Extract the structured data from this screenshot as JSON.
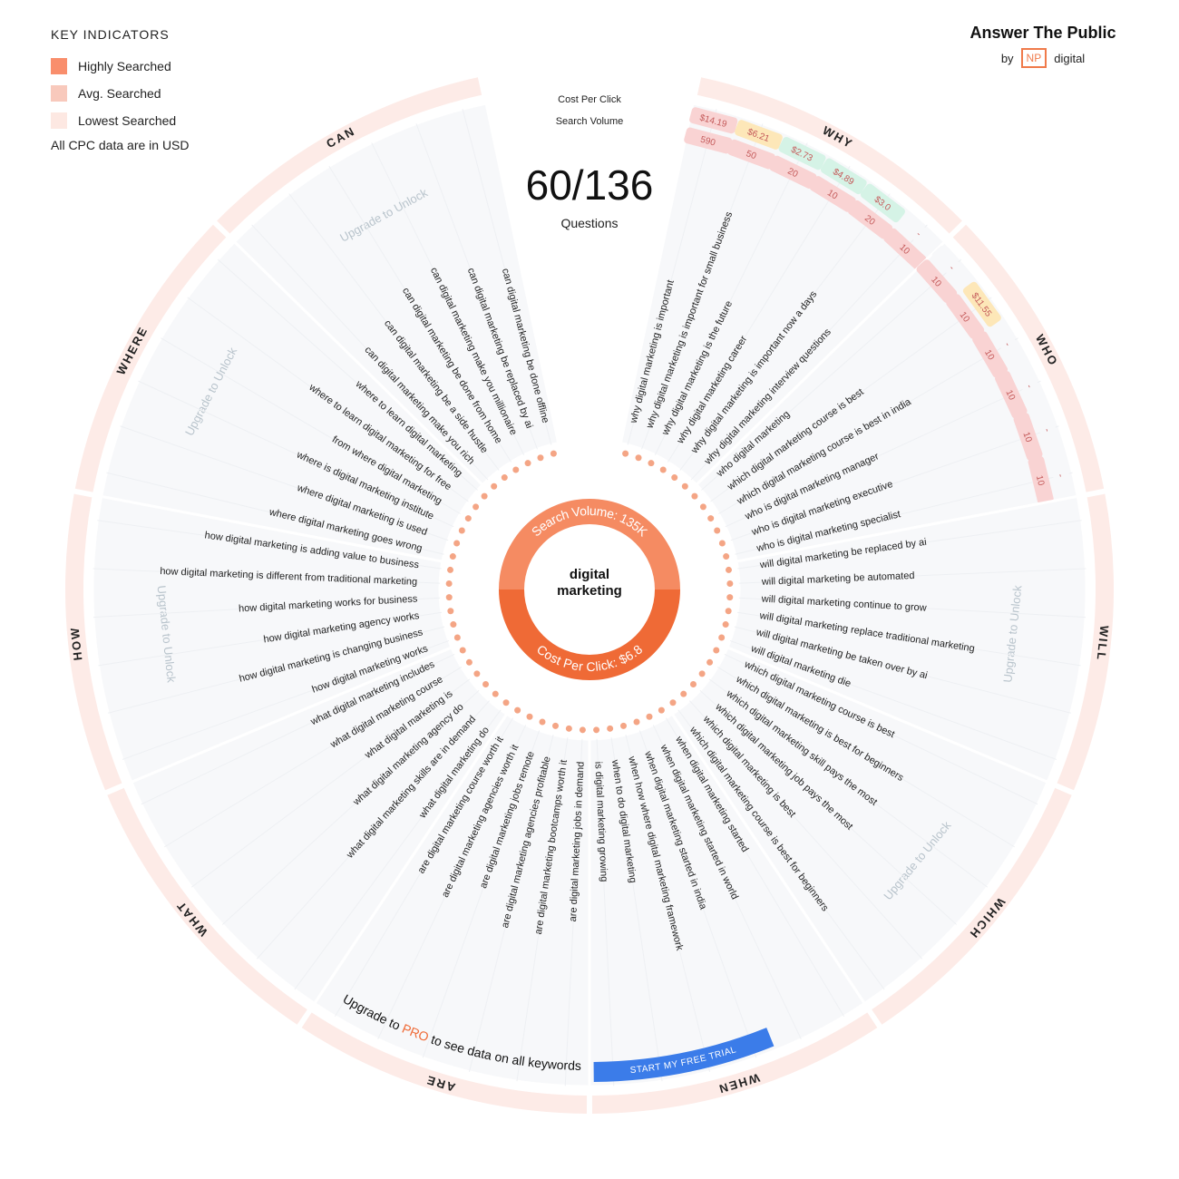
{
  "legend": {
    "title": "KEY INDICATORS",
    "items": [
      {
        "label": "Highly Searched",
        "color": "#f98e6c"
      },
      {
        "label": "Avg. Searched",
        "color": "#f8c9bc"
      },
      {
        "label": "Lowest Searched",
        "color": "#fde8e2"
      }
    ],
    "note": "All CPC data are in USD"
  },
  "brand": {
    "name": "Answer The Public",
    "by": "by",
    "badge": "NP",
    "suffix": "digital"
  },
  "header": {
    "cpc_label": "Cost Per Click",
    "volume_label": "Search Volume",
    "count": "60/136",
    "count_label": "Questions"
  },
  "center": {
    "keyword": "digital marketing",
    "volume": "Search Volume: 135K",
    "cpc": "Cost Per Click: $6.8"
  },
  "sections": [
    {
      "label": "WHY",
      "questions": [
        "why digital marketing is important",
        "why digital marketing is important for small business",
        "why digital marketing is the future",
        "why digital marketing career",
        "why digital marketing is important now a days",
        "why digital marketing interview questions"
      ],
      "cpc": [
        {
          "text": "$14.19",
          "color": "#f9d3d3"
        },
        {
          "text": "$6.21",
          "color": "#fde7b8"
        },
        {
          "text": "$2.73",
          "color": "#d5f3e6"
        },
        {
          "text": "$4.89",
          "color": "#d5f3e6"
        },
        {
          "text": "$3.0",
          "color": "#d5f3e6"
        },
        {
          "text": "-",
          "color": "#f7f8fa"
        }
      ],
      "volume": [
        590,
        50,
        20,
        10,
        20,
        10
      ]
    },
    {
      "label": "WHO",
      "questions": [
        "who digital marketing",
        "which digital marketing course is best",
        "which digital marketing course is best in india",
        "who is digital marketing manager",
        "who is digital marketing executive",
        "who is digital marketing specialist"
      ],
      "cpc": [
        {
          "text": "-",
          "color": "#f7f8fa"
        },
        {
          "text": "$11.55",
          "color": "#fde7b8"
        },
        {
          "text": "-",
          "color": "#f7f8fa"
        },
        {
          "text": "-",
          "color": "#f7f8fa"
        },
        {
          "text": "-",
          "color": "#f7f8fa"
        },
        {
          "text": "-",
          "color": "#f7f8fa"
        }
      ],
      "volume": [
        10,
        10,
        10,
        10,
        10,
        10
      ]
    },
    {
      "label": "WILL",
      "locked": "Upgrade to Unlock",
      "questions": [
        "will digital marketing be replaced by ai",
        "will digital marketing be automated",
        "will digital marketing continue to grow",
        "will digital marketing replace traditional marketing",
        "will digital marketing be taken over by ai",
        "will digital marketing die"
      ]
    },
    {
      "label": "WHICH",
      "locked": "Upgrade to Unlock",
      "questions": [
        "which digital marketing course is best",
        "which digital marketing is best for beginners",
        "which digital marketing skill pays the most",
        "which digital marketing job pays the most",
        "which digital marketing is best",
        "which digital marketing course is best for beginners"
      ]
    },
    {
      "label": "WHEN",
      "questions": [
        "when digital marketing started",
        "when digital marketing started in world",
        "when digital marketing started in india",
        "when how where digital marketing framework",
        "when to do digital marketing",
        "is digital marketing growing"
      ]
    },
    {
      "label": "ARE",
      "questions": [
        "are digital marketing jobs in demand",
        "are digital marketing bootcamps worth it",
        "are digital marketing agencies profitable",
        "are digital marketing jobs remote",
        "are digital marketing agencies worth it",
        "are digital marketing course worth it"
      ]
    },
    {
      "label": "WHAT",
      "questions": [
        "what digital marketing do",
        "what digital marketing skills are in demand",
        "what digital marketing agency do",
        "what digital marketing is",
        "what digital marketing course",
        "what digital marketing includes"
      ]
    },
    {
      "label": "HOW",
      "locked": "Upgrade to Unlock",
      "questions": [
        "how digital marketing works",
        "how digital marketing is changing business",
        "how digital marketing agency works",
        "how digital marketing works for business",
        "how digital marketing is different from traditional marketing",
        "how digital marketing is adding value to business"
      ]
    },
    {
      "label": "WHERE",
      "locked": "Upgrade to Unlock",
      "questions": [
        "where digital marketing goes wrong",
        "where digital marketing is used",
        "where is digital marketing institute",
        "from where digital marketing",
        "where to learn digital marketing for free",
        "where to learn digital marketing"
      ]
    },
    {
      "label": "CAN",
      "locked": "Upgrade to Unlock",
      "questions": [
        "can digital marketing make you rich",
        "can digital marketing be a side hustle",
        "can digital marketing be done from home",
        "can digital marketing make you millionaire",
        "can digital marketing be replaced by ai",
        "can digital marketing be done offline"
      ]
    }
  ],
  "upgrade": {
    "prefix": "Upgrade to",
    "pro": "PRO",
    "suffix": "to see data on all keywords",
    "button": "START MY FREE TRIAL"
  }
}
